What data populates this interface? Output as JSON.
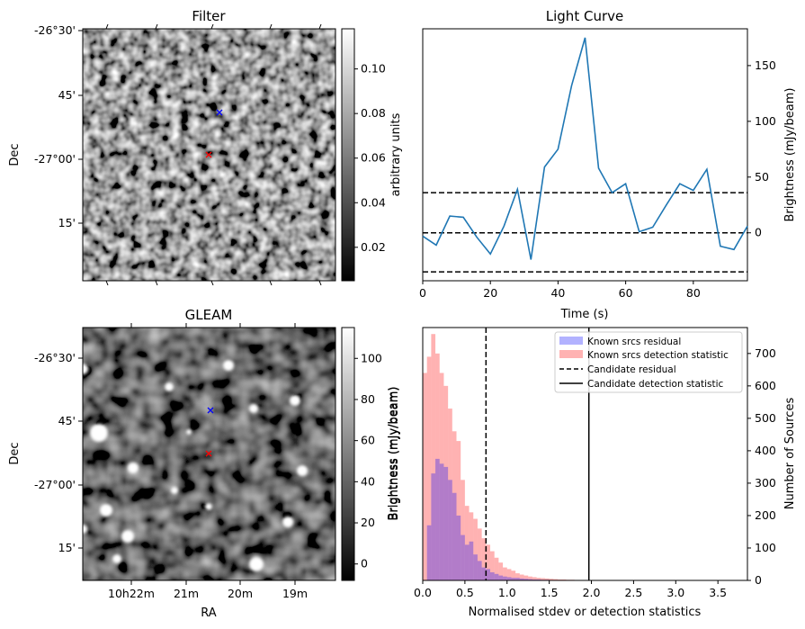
{
  "chart_data": [
    {
      "type": "heatmap",
      "title": "Filter",
      "ylabel": "Dec",
      "yticks": [
        "-26°30'",
        "45'",
        "-27°00'",
        "15'"
      ],
      "colorbar": {
        "label": "arbitrary units",
        "range": [
          0.005,
          0.118
        ],
        "ticks": [
          "0.02",
          "0.04",
          "0.06",
          "0.08",
          "0.10"
        ]
      },
      "markers": [
        {
          "name": "red-x",
          "color": "#ff0000"
        },
        {
          "name": "blue-x",
          "color": "#0000ff"
        }
      ]
    },
    {
      "type": "line",
      "title": "Light Curve",
      "xlabel": "Time (s)",
      "ylabel": "Brightness (mJy/beam)",
      "xlim": [
        0,
        96
      ],
      "ylim": [
        -43,
        183
      ],
      "xticks": [
        "0",
        "20",
        "40",
        "60",
        "80"
      ],
      "yticks": [
        "0",
        "50",
        "100",
        "150"
      ],
      "x": [
        0,
        4,
        8,
        12,
        16,
        20,
        24,
        28,
        32,
        36,
        40,
        44,
        48,
        52,
        56,
        60,
        64,
        68,
        72,
        76,
        80,
        84,
        88,
        92,
        96
      ],
      "y": [
        -3,
        -11,
        15,
        14,
        -4,
        -19,
        6,
        39,
        -24,
        59,
        75,
        132,
        175,
        58,
        36,
        44,
        1,
        5,
        25,
        44,
        38,
        57,
        -12,
        -15,
        6
      ],
      "color": "#1f77b4",
      "hlines": [
        36,
        0,
        -35
      ]
    },
    {
      "type": "heatmap",
      "title": "GLEAM",
      "xlabel": "RA",
      "ylabel": "Dec",
      "xticks": [
        "10h22m",
        "21m",
        "20m",
        "19m"
      ],
      "yticks": [
        "-26°30'",
        "45'",
        "-27°00'",
        "15'"
      ],
      "colorbar": {
        "label": "Brightness (mJy/beam)",
        "range": [
          -8,
          115
        ],
        "ticks": [
          "0",
          "20",
          "40",
          "60",
          "80",
          "100"
        ]
      },
      "markers": [
        {
          "name": "red-x",
          "color": "#ff0000"
        },
        {
          "name": "blue-x",
          "color": "#0000ff"
        }
      ]
    },
    {
      "type": "bar",
      "xlabel": "Normalised stdev or detection statistics",
      "ylabel": "Number of Sources",
      "xlim": [
        0,
        3.85
      ],
      "ylim": [
        0,
        780
      ],
      "xticks": [
        "0.0",
        "0.5",
        "1.0",
        "1.5",
        "2.0",
        "2.5",
        "3.0",
        "3.5"
      ],
      "yticks": [
        "0",
        "100",
        "200",
        "300",
        "400",
        "500",
        "600",
        "700"
      ],
      "bin_width": 0.05,
      "series": [
        {
          "name": "Known srcs residual",
          "color": "#0000ff",
          "alpha": 0.3,
          "bin_start": 0.05,
          "values": [
            170,
            330,
            375,
            360,
            350,
            310,
            270,
            200,
            140,
            110,
            120,
            80,
            60,
            40,
            35,
            25,
            20,
            15,
            12,
            10,
            8,
            8,
            6,
            5,
            4,
            3,
            3,
            2,
            2,
            1
          ]
        },
        {
          "name": "Known srcs detection statistic",
          "color": "#ff0000",
          "alpha": 0.3,
          "bin_start": 0.0,
          "values": [
            640,
            690,
            760,
            700,
            640,
            600,
            530,
            460,
            430,
            310,
            230,
            210,
            190,
            160,
            130,
            110,
            90,
            70,
            55,
            40,
            35,
            30,
            22,
            18,
            15,
            12,
            10,
            8,
            7,
            6,
            5,
            4,
            3,
            3,
            2,
            2,
            1,
            1
          ]
        }
      ],
      "vlines": [
        {
          "name": "Candidate residual",
          "x": 0.75,
          "style": "dashed"
        },
        {
          "name": "Candidate detection statistic",
          "x": 1.97,
          "style": "solid"
        }
      ],
      "left_axis_label": "Brightness (mJy/beam)"
    }
  ]
}
